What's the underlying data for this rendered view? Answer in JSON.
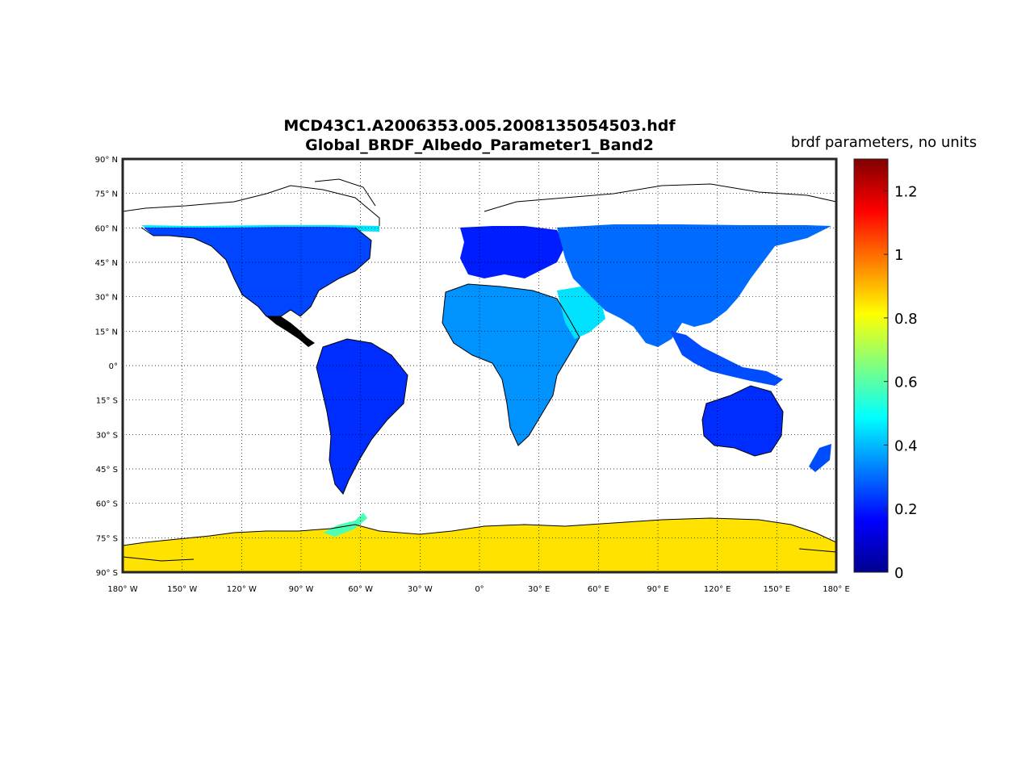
{
  "title": {
    "line1": "MCD43C1.A2006353.005.2008135054503.hdf",
    "line2": "Global_BRDF_Albedo_Parameter1_Band2"
  },
  "colorbar": {
    "label": "brdf parameters, no units",
    "min": 0,
    "max": 1.3,
    "ticks": [
      {
        "value": 0,
        "label": "0"
      },
      {
        "value": 0.2,
        "label": "0.2"
      },
      {
        "value": 0.4,
        "label": "0.4"
      },
      {
        "value": 0.6,
        "label": "0.6"
      },
      {
        "value": 0.8,
        "label": "0.8"
      },
      {
        "value": 1.0,
        "label": "1"
      },
      {
        "value": 1.2,
        "label": "1.2"
      }
    ],
    "colormap": "jet"
  },
  "map": {
    "projection": "equirectangular",
    "lon_range": [
      -180,
      180
    ],
    "lat_range": [
      -90,
      90
    ],
    "grid": true,
    "lat_ticks": [
      {
        "value": 90,
        "label": "90° N"
      },
      {
        "value": 75,
        "label": "75° N"
      },
      {
        "value": 60,
        "label": "60° N"
      },
      {
        "value": 45,
        "label": "45° N"
      },
      {
        "value": 30,
        "label": "30° N"
      },
      {
        "value": 15,
        "label": "15° N"
      },
      {
        "value": 0,
        "label": "0°"
      },
      {
        "value": -15,
        "label": "15° S"
      },
      {
        "value": -30,
        "label": "30° S"
      },
      {
        "value": -45,
        "label": "45° S"
      },
      {
        "value": -60,
        "label": "60° S"
      },
      {
        "value": -75,
        "label": "75° S"
      },
      {
        "value": -90,
        "label": "90° S"
      }
    ],
    "lon_ticks": [
      {
        "value": -180,
        "label": "180° W"
      },
      {
        "value": -150,
        "label": "150° W"
      },
      {
        "value": -120,
        "label": "120° W"
      },
      {
        "value": -90,
        "label": "90° W"
      },
      {
        "value": -60,
        "label": "60° W"
      },
      {
        "value": -30,
        "label": "30° W"
      },
      {
        "value": 0,
        "label": "0°"
      },
      {
        "value": 30,
        "label": "30° E"
      },
      {
        "value": 60,
        "label": "60° E"
      },
      {
        "value": 90,
        "label": "90° E"
      },
      {
        "value": 120,
        "label": "120° E"
      },
      {
        "value": 150,
        "label": "150° E"
      },
      {
        "value": 180,
        "label": "180° E"
      }
    ],
    "regions": [
      {
        "name": "north-america",
        "value": 0.25
      },
      {
        "name": "south-america",
        "value": 0.22
      },
      {
        "name": "europe",
        "value": 0.2
      },
      {
        "name": "asia",
        "value": 0.3
      },
      {
        "name": "africa",
        "value": 0.35
      },
      {
        "name": "arabia",
        "value": 0.45
      },
      {
        "name": "australia",
        "value": 0.22
      },
      {
        "name": "greenland-south",
        "value": 0.3
      },
      {
        "name": "antarctica",
        "value": 0.85
      }
    ]
  }
}
